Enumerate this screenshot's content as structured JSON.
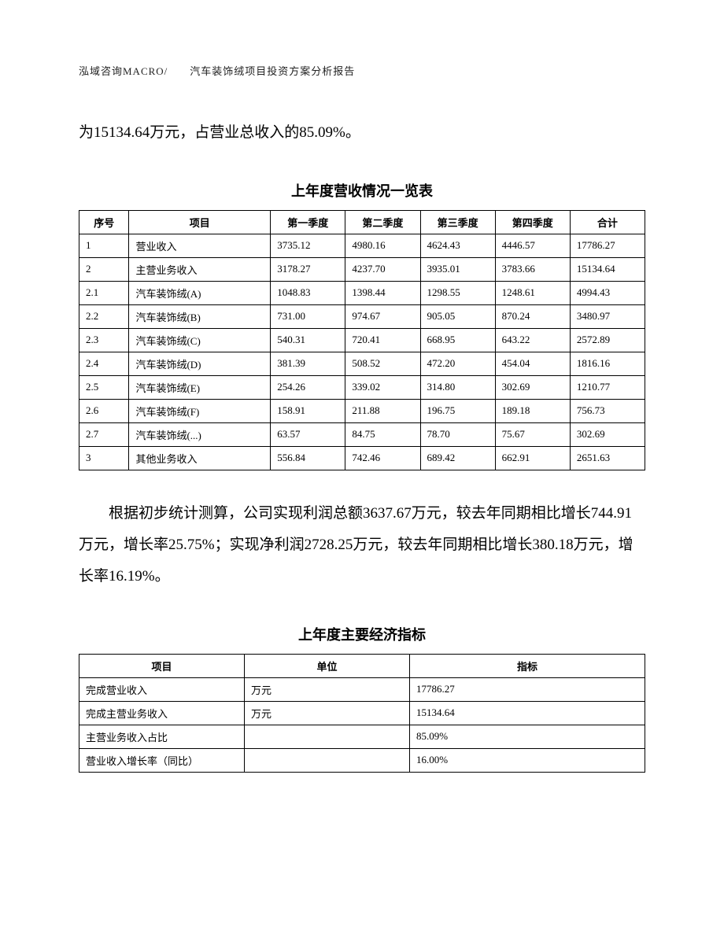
{
  "header": "泓域咨询MACRO/　　汽车装饰绒项目投资方案分析报告",
  "paragraph1": "为15134.64万元，占营业总收入的85.09%。",
  "table1": {
    "title": "上年度营收情况一览表",
    "headers": [
      "序号",
      "项目",
      "第一季度",
      "第二季度",
      "第三季度",
      "第四季度",
      "合计"
    ],
    "rows": [
      [
        "1",
        "营业收入",
        "3735.12",
        "4980.16",
        "4624.43",
        "4446.57",
        "17786.27"
      ],
      [
        "2",
        "主营业务收入",
        "3178.27",
        "4237.70",
        "3935.01",
        "3783.66",
        "15134.64"
      ],
      [
        "2.1",
        "汽车装饰绒(A)",
        "1048.83",
        "1398.44",
        "1298.55",
        "1248.61",
        "4994.43"
      ],
      [
        "2.2",
        "汽车装饰绒(B)",
        "731.00",
        "974.67",
        "905.05",
        "870.24",
        "3480.97"
      ],
      [
        "2.3",
        "汽车装饰绒(C)",
        "540.31",
        "720.41",
        "668.95",
        "643.22",
        "2572.89"
      ],
      [
        "2.4",
        "汽车装饰绒(D)",
        "381.39",
        "508.52",
        "472.20",
        "454.04",
        "1816.16"
      ],
      [
        "2.5",
        "汽车装饰绒(E)",
        "254.26",
        "339.02",
        "314.80",
        "302.69",
        "1210.77"
      ],
      [
        "2.6",
        "汽车装饰绒(F)",
        "158.91",
        "211.88",
        "196.75",
        "189.18",
        "756.73"
      ],
      [
        "2.7",
        "汽车装饰绒(...)",
        "63.57",
        "84.75",
        "78.70",
        "75.67",
        "302.69"
      ],
      [
        "3",
        "其他业务收入",
        "556.84",
        "742.46",
        "689.42",
        "662.91",
        "2651.63"
      ]
    ]
  },
  "paragraph2": "根据初步统计测算，公司实现利润总额3637.67万元，较去年同期相比增长744.91万元，增长率25.75%；实现净利润2728.25万元，较去年同期相比增长380.18万元，增长率16.19%。",
  "table2": {
    "title": "上年度主要经济指标",
    "headers": [
      "项目",
      "单位",
      "指标"
    ],
    "rows": [
      [
        "完成营业收入",
        "万元",
        "17786.27"
      ],
      [
        "完成主营业务收入",
        "万元",
        "15134.64"
      ],
      [
        "主营业务收入占比",
        "",
        "85.09%"
      ],
      [
        "营业收入增长率（同比）",
        "",
        "16.00%"
      ]
    ]
  }
}
